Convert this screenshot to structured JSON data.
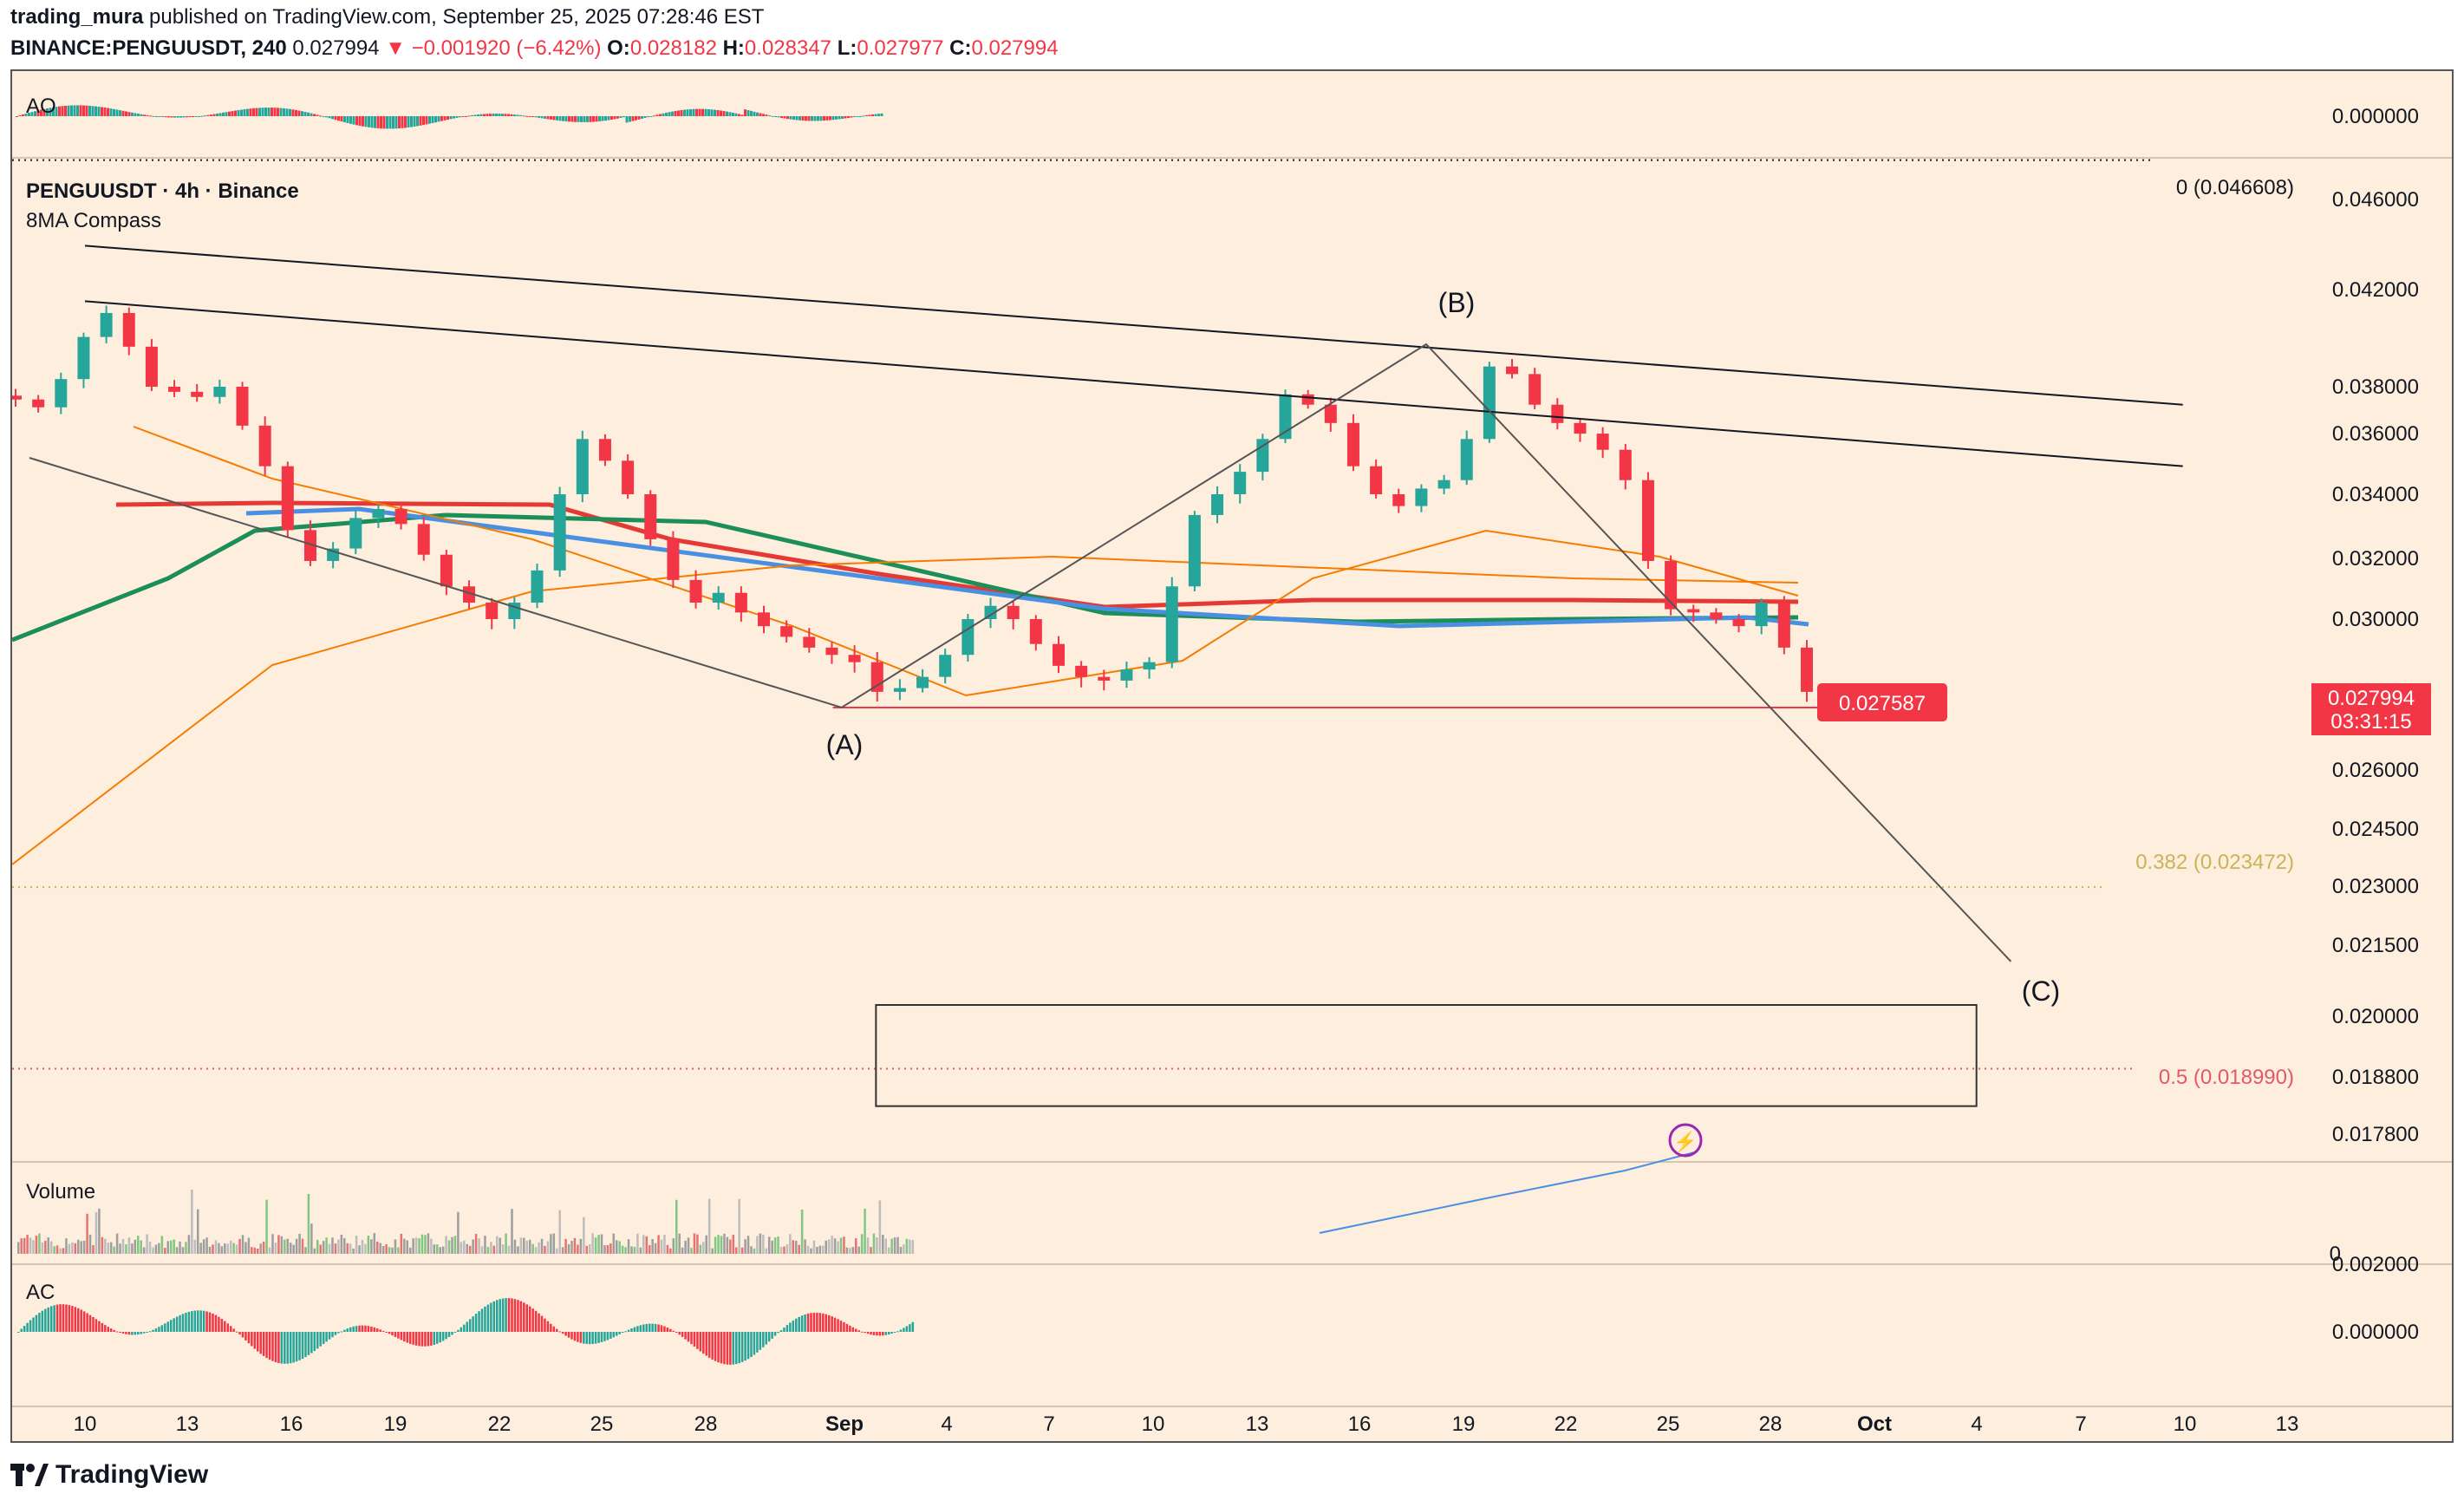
{
  "header": {
    "author": "trading_mura",
    "published": "published on TradingView.com, September 25, 2025 07:28:46 EST",
    "symbol": "BINANCE:PENGUUSDT, 240",
    "last": "0.027994",
    "change": "−0.001920 (−6.42%)",
    "o_label": "O:",
    "o": "0.028182",
    "h_label": "H:",
    "h": "0.028347",
    "l_label": "L:",
    "l": "0.027977",
    "c_label": "C:",
    "c": "0.027994"
  },
  "panes": {
    "ao": "AO",
    "main_title": "PENGUUSDT · 4h · Binance",
    "indicator": "8MA Compass",
    "volume": "Volume",
    "ac": "AC"
  },
  "annotations": {
    "A": "(A)",
    "B": "(B)",
    "C": "(C)",
    "fib0": "0 (0.046608)",
    "fib382": "0.382 (0.023472)",
    "fib5": "0.5 (0.018990)",
    "support_label": "0.027587",
    "price_tag": "0.027994",
    "countdown": "03:31:15"
  },
  "price_axis": [
    "0.046000",
    "0.042000",
    "0.038000",
    "0.036000",
    "0.034000",
    "0.032000",
    "0.030000",
    "0.026000",
    "0.024500",
    "0.023000",
    "0.021500",
    "0.020000",
    "0.018800",
    "0.017800"
  ],
  "ao_axis": "0.000000",
  "vol_axis": "0",
  "ac_axis": [
    "0.002000",
    "0.000000"
  ],
  "time_axis": [
    "10",
    "13",
    "16",
    "19",
    "22",
    "25",
    "28",
    "Sep",
    "4",
    "7",
    "10",
    "13",
    "16",
    "19",
    "22",
    "25",
    "28",
    "Oct",
    "4",
    "7",
    "10",
    "13"
  ],
  "colors": {
    "background": "#fdeedd",
    "up": "#26a69a",
    "down": "#f23645",
    "ma_red": "#e53935",
    "ma_green": "#1b8e5a",
    "ma_blue": "#4a90e2",
    "ma_orange": "#f57c00",
    "fib_yellow": "#c9b458",
    "fib_red": "#e05a6a",
    "brand": "#131722"
  },
  "chart_data": {
    "type": "candlestick",
    "timeframe": "4h",
    "y_scale": "log",
    "ylim": [
      0.0172,
      0.0475
    ],
    "x_range": [
      "2025-08-10",
      "2025-10-13"
    ],
    "swings": [
      {
        "label": "(A)",
        "date": "2025-09-01",
        "price": 0.027587
      },
      {
        "label": "(B)",
        "date": "2025-09-18",
        "price": 0.0397
      },
      {
        "label": "(C)",
        "date": "2025-10-05",
        "price": 0.0215
      }
    ],
    "closes": [
      0.0375,
      0.0372,
      0.0383,
      0.04,
      0.041,
      0.0396,
      0.038,
      0.0378,
      0.0376,
      0.038,
      0.0365,
      0.035,
      0.0328,
      0.0318,
      0.0322,
      0.0332,
      0.0335,
      0.033,
      0.032,
      0.031,
      0.0305,
      0.03,
      0.0305,
      0.0315,
      0.034,
      0.036,
      0.0352,
      0.034,
      0.0325,
      0.0312,
      0.0305,
      0.0308,
      0.0302,
      0.0298,
      0.0295,
      0.0292,
      0.029,
      0.0288,
      0.028,
      0.0281,
      0.0284,
      0.029,
      0.03,
      0.0304,
      0.03,
      0.0293,
      0.0287,
      0.0284,
      0.0283,
      0.0286,
      0.0288,
      0.031,
      0.0333,
      0.034,
      0.0348,
      0.036,
      0.0377,
      0.0373,
      0.0366,
      0.035,
      0.034,
      0.0336,
      0.0342,
      0.0345,
      0.036,
      0.0388,
      0.0385,
      0.0373,
      0.0366,
      0.0362,
      0.0356,
      0.0345,
      0.0318,
      0.0303,
      0.0302,
      0.03,
      0.0298,
      0.0305,
      0.0292,
      0.028
    ],
    "levels": [
      {
        "name": "0",
        "value": 0.046608
      },
      {
        "name": "0.382",
        "value": 0.023472
      },
      {
        "name": "0.5",
        "value": 0.01899
      },
      {
        "name": "support",
        "value": 0.027587
      }
    ],
    "target_box": {
      "from": "2025-09-02",
      "to": "2025-10-04",
      "low": 0.0183,
      "high": 0.0203
    },
    "trendlines": [
      {
        "from": [
          "2025-08-10",
          0.0439
        ],
        "to": [
          "2025-10-10",
          0.0373
        ]
      },
      {
        "from": [
          "2025-08-10",
          0.0415
        ],
        "to": [
          "2025-10-10",
          0.035
        ]
      }
    ],
    "last": {
      "price": 0.027994,
      "countdown": "03:31:15"
    }
  }
}
